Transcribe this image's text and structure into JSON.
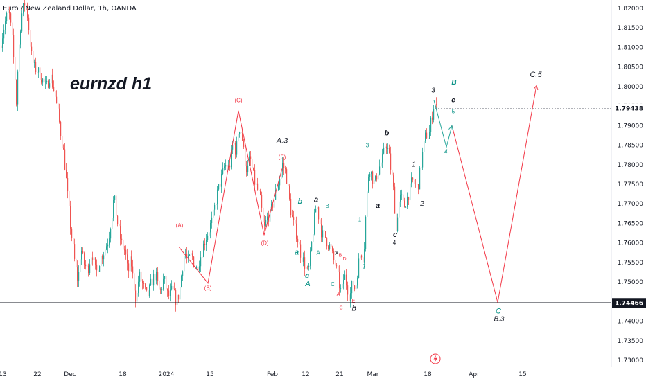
{
  "header": {
    "symbol_line": "Euro / New Zealand Dollar, 1h, OANDA"
  },
  "chart_data": {
    "type": "line",
    "title": "eurnzd h1",
    "ylim": [
      1.728,
      1.823
    ],
    "y_ticks": [
      "1.82000",
      "1.81500",
      "1.81000",
      "1.80500",
      "1.80000",
      "1.79500",
      "1.79000",
      "1.78500",
      "1.78000",
      "1.77500",
      "1.77000",
      "1.76500",
      "1.76000",
      "1.75500",
      "1.75000",
      "1.74500",
      "1.74000",
      "1.73500",
      "1.73000"
    ],
    "x_ticks": [
      {
        "label": "13",
        "t": 4
      },
      {
        "label": "22",
        "t": 54
      },
      {
        "label": "Dec",
        "t": 101
      },
      {
        "label": "18",
        "t": 177
      },
      {
        "label": "2024",
        "t": 240
      },
      {
        "label": "15",
        "t": 303
      },
      {
        "label": "Feb",
        "t": 393
      },
      {
        "label": "12",
        "t": 441
      },
      {
        "label": "21",
        "t": 490
      },
      {
        "label": "Mar",
        "t": 538
      },
      {
        "label": "18",
        "t": 617
      },
      {
        "label": "Apr",
        "t": 684
      },
      {
        "label": "15",
        "t": 754
      }
    ],
    "price_path": [
      [
        0,
        1.8105
      ],
      [
        6,
        1.816
      ],
      [
        12,
        1.8195
      ],
      [
        16,
        1.814
      ],
      [
        20,
        1.805
      ],
      [
        23,
        1.796
      ],
      [
        26,
        1.808
      ],
      [
        30,
        1.818
      ],
      [
        36,
        1.822
      ],
      [
        40,
        1.817
      ],
      [
        44,
        1.809
      ],
      [
        48,
        1.805
      ],
      [
        54,
        1.804
      ],
      [
        60,
        1.802
      ],
      [
        66,
        1.7995
      ],
      [
        72,
        1.803
      ],
      [
        78,
        1.7985
      ],
      [
        84,
        1.792
      ],
      [
        88,
        1.787
      ],
      [
        92,
        1.782
      ],
      [
        96,
        1.774
      ],
      [
        100,
        1.766
      ],
      [
        104,
        1.76
      ],
      [
        108,
        1.754
      ],
      [
        112,
        1.75
      ],
      [
        116,
        1.759
      ],
      [
        120,
        1.755
      ],
      [
        126,
        1.753
      ],
      [
        132,
        1.758
      ],
      [
        138,
        1.752
      ],
      [
        144,
        1.756
      ],
      [
        150,
        1.758
      ],
      [
        156,
        1.761
      ],
      [
        160,
        1.766
      ],
      [
        164,
        1.772
      ],
      [
        168,
        1.766
      ],
      [
        172,
        1.762
      ],
      [
        176,
        1.759
      ],
      [
        180,
        1.758
      ],
      [
        184,
        1.752
      ],
      [
        188,
        1.756
      ],
      [
        192,
        1.75
      ],
      [
        196,
        1.745
      ],
      [
        200,
        1.752
      ],
      [
        206,
        1.749
      ],
      [
        212,
        1.746
      ],
      [
        218,
        1.75
      ],
      [
        224,
        1.752
      ],
      [
        230,
        1.747
      ],
      [
        236,
        1.751
      ],
      [
        242,
        1.746
      ],
      [
        248,
        1.748
      ],
      [
        254,
        1.745
      ],
      [
        258,
        1.747
      ],
      [
        262,
        1.753
      ],
      [
        266,
        1.758
      ],
      [
        270,
        1.755
      ],
      [
        276,
        1.757
      ],
      [
        282,
        1.753
      ],
      [
        288,
        1.756
      ],
      [
        294,
        1.76
      ],
      [
        300,
        1.763
      ],
      [
        306,
        1.766
      ],
      [
        312,
        1.772
      ],
      [
        318,
        1.776
      ],
      [
        324,
        1.78
      ],
      [
        330,
        1.779
      ],
      [
        336,
        1.786
      ],
      [
        340,
        1.783
      ],
      [
        344,
        1.79
      ],
      [
        348,
        1.788
      ],
      [
        352,
        1.782
      ],
      [
        356,
        1.778
      ],
      [
        360,
        1.782
      ],
      [
        366,
        1.776
      ],
      [
        372,
        1.773
      ],
      [
        376,
        1.77
      ],
      [
        380,
        1.763
      ],
      [
        384,
        1.766
      ],
      [
        390,
        1.768
      ],
      [
        396,
        1.772
      ],
      [
        402,
        1.776
      ],
      [
        407,
        1.78
      ],
      [
        412,
        1.778
      ],
      [
        416,
        1.772
      ],
      [
        420,
        1.767
      ],
      [
        424,
        1.764
      ],
      [
        428,
        1.762
      ],
      [
        432,
        1.758
      ],
      [
        436,
        1.756
      ],
      [
        440,
        1.754
      ],
      [
        444,
        1.752
      ],
      [
        448,
        1.758
      ],
      [
        452,
        1.765
      ],
      [
        456,
        1.77
      ],
      [
        460,
        1.766
      ],
      [
        464,
        1.762
      ],
      [
        468,
        1.762
      ],
      [
        472,
        1.76
      ],
      [
        476,
        1.759
      ],
      [
        480,
        1.756
      ],
      [
        484,
        1.754
      ],
      [
        488,
        1.75
      ],
      [
        492,
        1.747
      ],
      [
        496,
        1.752
      ],
      [
        500,
        1.749
      ],
      [
        504,
        1.746
      ],
      [
        508,
        1.75
      ],
      [
        512,
        1.748
      ],
      [
        516,
        1.754
      ],
      [
        520,
        1.758
      ],
      [
        524,
        1.756
      ],
      [
        528,
        1.77
      ],
      [
        532,
        1.78
      ],
      [
        536,
        1.777
      ],
      [
        540,
        1.775
      ],
      [
        544,
        1.778
      ],
      [
        548,
        1.78
      ],
      [
        552,
        1.782
      ],
      [
        556,
        1.786
      ],
      [
        560,
        1.783
      ],
      [
        564,
        1.778
      ],
      [
        568,
        1.772
      ],
      [
        571,
        1.763
      ],
      [
        574,
        1.77
      ],
      [
        578,
        1.772
      ],
      [
        582,
        1.769
      ],
      [
        586,
        1.771
      ],
      [
        590,
        1.773
      ],
      [
        594,
        1.776
      ],
      [
        598,
        1.775
      ],
      [
        602,
        1.774
      ],
      [
        606,
        1.779
      ],
      [
        610,
        1.784
      ],
      [
        614,
        1.788
      ],
      [
        618,
        1.787
      ],
      [
        622,
        1.792
      ],
      [
        626,
        1.796
      ],
      [
        630,
        1.794
      ]
    ],
    "wave_path_red": [
      [
        258,
        1.759
      ],
      [
        300,
        1.7497
      ],
      [
        344,
        1.7938
      ],
      [
        381,
        1.762
      ],
      [
        407,
        1.779
      ]
    ],
    "projection_green": [
      [
        626,
        1.7965
      ],
      [
        644,
        1.7845
      ],
      [
        652,
        1.79
      ]
    ],
    "projection_red": [
      [
        652,
        1.79
      ],
      [
        718,
        1.7448
      ],
      [
        774,
        1.8003
      ]
    ],
    "hline": {
      "value": 1.74466,
      "label": "1.74466"
    },
    "current_price": {
      "value": 1.79438,
      "label": "1.79438"
    },
    "wave_labels": [
      {
        "text": "(A)",
        "t": 259,
        "y": 1.764,
        "color": "#f23645",
        "size": 8,
        "italic": false,
        "bold": false
      },
      {
        "text": "(B)",
        "t": 300,
        "y": 1.748,
        "color": "#f23645",
        "size": 8,
        "italic": false,
        "bold": false
      },
      {
        "text": "(C)",
        "t": 344,
        "y": 1.796,
        "color": "#f23645",
        "size": 8,
        "italic": false,
        "bold": false
      },
      {
        "text": "(D)",
        "t": 382,
        "y": 1.7595,
        "color": "#f23645",
        "size": 8,
        "italic": false,
        "bold": false
      },
      {
        "text": "(E)",
        "t": 407,
        "y": 1.7815,
        "color": "#f23645",
        "size": 8,
        "italic": false,
        "bold": false
      },
      {
        "text": "A.3",
        "t": 407,
        "y": 1.7855,
        "color": "#131722",
        "size": 11,
        "italic": true,
        "bold": false
      },
      {
        "text": "b",
        "t": 433,
        "y": 1.77,
        "color": "#0d9488",
        "size": 11,
        "italic": true,
        "bold": true
      },
      {
        "text": "a",
        "t": 456,
        "y": 1.7705,
        "color": "#131722",
        "size": 11,
        "italic": true,
        "bold": true
      },
      {
        "text": "B",
        "t": 472,
        "y": 1.769,
        "color": "#0d9488",
        "size": 8,
        "italic": false,
        "bold": false
      },
      {
        "text": "a",
        "t": 428,
        "y": 1.757,
        "color": "#0d9488",
        "size": 11,
        "italic": true,
        "bold": true
      },
      {
        "text": "A",
        "t": 459,
        "y": 1.757,
        "color": "#0d9488",
        "size": 8,
        "italic": false,
        "bold": false
      },
      {
        "text": "c",
        "t": 443,
        "y": 1.751,
        "color": "#0d9488",
        "size": 11,
        "italic": true,
        "bold": true
      },
      {
        "text": "A",
        "t": 444,
        "y": 1.749,
        "color": "#0d9488",
        "size": 11,
        "italic": true,
        "bold": false
      },
      {
        "text": "x",
        "t": 486,
        "y": 1.757,
        "color": "#131722",
        "size": 9,
        "italic": false,
        "bold": false
      },
      {
        "text": "B",
        "t": 491,
        "y": 1.7565,
        "color": "#f23645",
        "size": 7,
        "italic": false,
        "bold": false
      },
      {
        "text": "D",
        "t": 497,
        "y": 1.7555,
        "color": "#f23645",
        "size": 7,
        "italic": false,
        "bold": false
      },
      {
        "text": "C",
        "t": 480,
        "y": 1.749,
        "color": "#0d9488",
        "size": 8,
        "italic": false,
        "bold": false
      },
      {
        "text": "A",
        "t": 488,
        "y": 1.7465,
        "color": "#f23645",
        "size": 7,
        "italic": false,
        "bold": false
      },
      {
        "text": "E",
        "t": 510,
        "y": 1.7448,
        "color": "#f23645",
        "size": 7,
        "italic": false,
        "bold": false
      },
      {
        "text": "C",
        "t": 492,
        "y": 1.743,
        "color": "#f23645",
        "size": 7,
        "italic": false,
        "bold": false
      },
      {
        "text": "b",
        "t": 511,
        "y": 1.7427,
        "color": "#131722",
        "size": 11,
        "italic": true,
        "bold": true
      },
      {
        "text": "1",
        "t": 519,
        "y": 1.7655,
        "color": "#0d9488",
        "size": 8,
        "italic": false,
        "bold": false
      },
      {
        "text": "2",
        "t": 525,
        "y": 1.7535,
        "color": "#0d9488",
        "size": 8,
        "italic": false,
        "bold": false
      },
      {
        "text": "3",
        "t": 530,
        "y": 1.7845,
        "color": "#0d9488",
        "size": 8,
        "italic": false,
        "bold": false
      },
      {
        "text": "a",
        "t": 545,
        "y": 1.769,
        "color": "#131722",
        "size": 11,
        "italic": true,
        "bold": true
      },
      {
        "text": "b",
        "t": 558,
        "y": 1.7875,
        "color": "#131722",
        "size": 11,
        "italic": true,
        "bold": true
      },
      {
        "text": "c",
        "t": 570,
        "y": 1.7615,
        "color": "#131722",
        "size": 11,
        "italic": true,
        "bold": true
      },
      {
        "text": "4",
        "t": 569,
        "y": 1.7596,
        "color": "#131722",
        "size": 8,
        "italic": false,
        "bold": false
      },
      {
        "text": "1",
        "t": 597,
        "y": 1.7795,
        "color": "#131722",
        "size": 10,
        "italic": true,
        "bold": false
      },
      {
        "text": "2",
        "t": 609,
        "y": 1.7695,
        "color": "#131722",
        "size": 10,
        "italic": true,
        "bold": false
      },
      {
        "text": "3",
        "t": 625,
        "y": 1.7985,
        "color": "#131722",
        "size": 10,
        "italic": true,
        "bold": false
      },
      {
        "text": "B",
        "t": 655,
        "y": 1.8005,
        "color": "#0d9488",
        "size": 10,
        "italic": true,
        "bold": true
      },
      {
        "text": "c",
        "t": 654,
        "y": 1.796,
        "color": "#131722",
        "size": 10,
        "italic": true,
        "bold": true
      },
      {
        "text": "5",
        "t": 654,
        "y": 1.7932,
        "color": "#0d9488",
        "size": 8,
        "italic": false,
        "bold": false
      },
      {
        "text": "4",
        "t": 643,
        "y": 1.7828,
        "color": "#0d9488",
        "size": 9,
        "italic": true,
        "bold": false
      },
      {
        "text": "C.5",
        "t": 773,
        "y": 1.8025,
        "color": "#131722",
        "size": 11,
        "italic": true,
        "bold": false
      },
      {
        "text": "C",
        "t": 719,
        "y": 1.742,
        "color": "#0d9488",
        "size": 11,
        "italic": true,
        "bold": false
      },
      {
        "text": "B.3",
        "t": 720,
        "y": 1.74,
        "color": "#131722",
        "size": 10,
        "italic": true,
        "bold": false
      }
    ],
    "colors": {
      "up": "#26a69a",
      "down": "#ef5350",
      "wave": "#f23645",
      "projection_teal": "#26a69a",
      "line": "#131722"
    },
    "icons": [
      "lightning-icon"
    ]
  }
}
